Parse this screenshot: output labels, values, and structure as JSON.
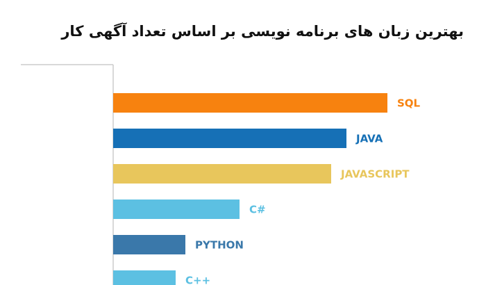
{
  "chart_data": {
    "type": "bar",
    "orientation": "horizontal",
    "title": "بهترین زبان های برنامه نویسی بر اساس تعداد آگهی کار",
    "categories": [
      "SQL",
      "JAVA",
      "JAVASCRIPT",
      "C#",
      "PYTHON",
      "C++"
    ],
    "values": [
      395,
      336,
      314,
      182,
      104,
      90
    ],
    "colors": [
      "#f7820f",
      "#1670b6",
      "#e8c65c",
      "#5cc0e2",
      "#3a78aa",
      "#5cc0e2"
    ]
  }
}
